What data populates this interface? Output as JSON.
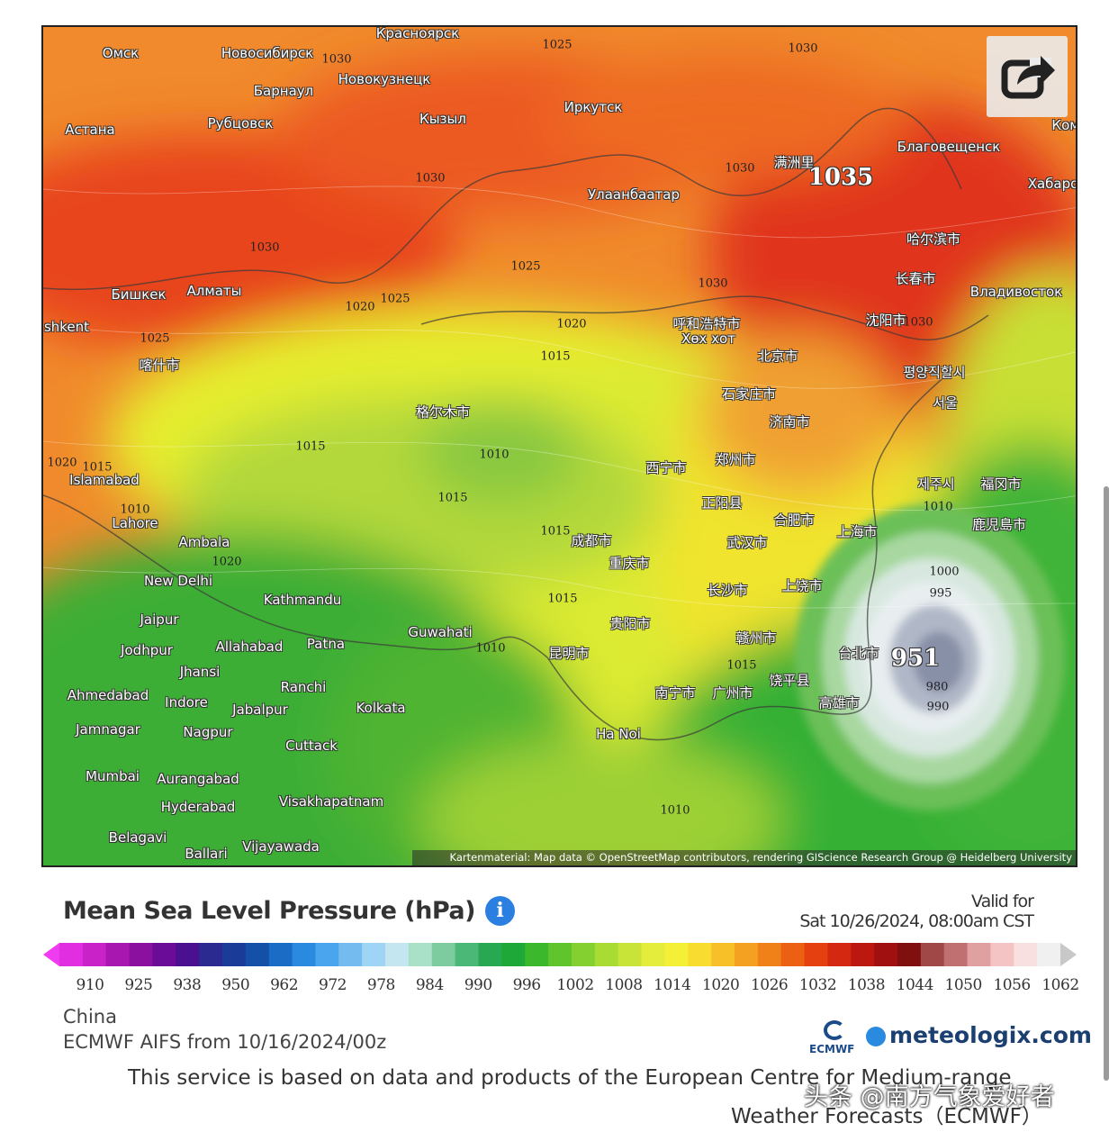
{
  "map": {
    "cities": [
      "Омск",
      "Новосибирск",
      "Красноярск",
      "Барнаул",
      "Новокузнецк",
      "Иркутск",
      "Кызыл",
      "Рубцовск",
      "Астана",
      "Благовещенск",
      "Улаанбаатар",
      "满洲里",
      "Хабаро",
      "哈尔滨市",
      "长春市",
      "Владивосток",
      "Бишкек",
      "Алматы",
      "呼和浩特市",
      "Хөх хот",
      "沈阳市",
      "北京市",
      "喀什市",
      "평양직할시",
      "서울",
      "石家庄市",
      "济南市",
      "格尔木市",
      "西宁市",
      "郑州市",
      "Islamabad",
      "제주시",
      "福冈市",
      "Lahore",
      "鹿児島市",
      "正阳县",
      "合肥市",
      "上海市",
      "成都市",
      "武汉市",
      "Ambala",
      "重庆市",
      "New Delhi",
      "Kathmandu",
      "长沙市",
      "上饶市",
      "Jaipur",
      "Guwahati",
      "贵阳市",
      "Jodhpur",
      "Allahabad",
      "Patna",
      "昆明市",
      "赣州市",
      "台北市",
      "Jhansi",
      "Ranchi",
      "南宁市",
      "广州市",
      "饶平县",
      "高雄市",
      "Ahmedabad",
      "Indore",
      "Jabalpur",
      "Kolkata",
      "Ha Noi",
      "Jamnagar",
      "Nagpur",
      "Cuttack",
      "Mumbai",
      "Aurangabad",
      "Hyderabad",
      "Visakhapatnam",
      "Belagavi",
      "Ballari",
      "Vijayawada",
      "shkent",
      "Ком"
    ],
    "pressure_labels": [
      1025,
      1030,
      1030,
      1030,
      1030,
      1030,
      1025,
      1030,
      1020,
      1025,
      1020,
      1030,
      1025,
      1015,
      1015,
      1010,
      1015,
      1015,
      1015,
      1010,
      1000,
      995,
      980,
      990,
      1010,
      1010,
      1015,
      1010,
      1020,
      1020,
      1015
    ],
    "highs_lows": [
      1035,
      951
    ],
    "attribution": "Kartenmaterial: Map data © OpenStreetMap contributors, rendering GIScience Research Group @ Heidelberg University"
  },
  "legend": {
    "title": "Mean Sea Level Pressure (hPa)",
    "info": "i",
    "valid_label": "Valid for",
    "valid_time": "Sat 10/26/2024, 08:00am CST",
    "ticks": [
      910,
      925,
      938,
      950,
      962,
      972,
      978,
      984,
      990,
      996,
      1002,
      1008,
      1014,
      1020,
      1026,
      1032,
      1038,
      1044,
      1050,
      1056,
      1062
    ],
    "colors": [
      "#f03cf0",
      "#e02ee0",
      "#c822c8",
      "#a818b0",
      "#8c10a0",
      "#6a0c98",
      "#4a1090",
      "#2a2a90",
      "#1a3c98",
      "#1450a8",
      "#1a6cc4",
      "#2a8ae0",
      "#4aa4ee",
      "#74bcf0",
      "#a0d4f4",
      "#c4e6f0",
      "#a8e0c8",
      "#7ccca0",
      "#4cb878",
      "#28a850",
      "#1ea838",
      "#3cb82c",
      "#60c42c",
      "#84d030",
      "#a8dc34",
      "#c8e438",
      "#e4ec3c",
      "#f4f038",
      "#f8dc30",
      "#f8c028",
      "#f4a020",
      "#f08018",
      "#ec6014",
      "#e44010",
      "#d42810",
      "#bc1810",
      "#a01010",
      "#801010",
      "#a04848",
      "#c07070",
      "#e0a0a0",
      "#f4c4c4",
      "#f8e0e0",
      "#f0f0f0",
      "#c8c8c8"
    ]
  },
  "info": {
    "region": "China",
    "model": "ECMWF AIFS from 10/16/2024/00z",
    "ecmwf": "ECMWF",
    "brand": "meteologix.com"
  },
  "footer": {
    "line1": "This service is based on data and products of the European Centre for Medium-range",
    "line2": "Weather Forecasts（ECMWF）"
  },
  "watermark": "头条 @南方气象爱好者"
}
